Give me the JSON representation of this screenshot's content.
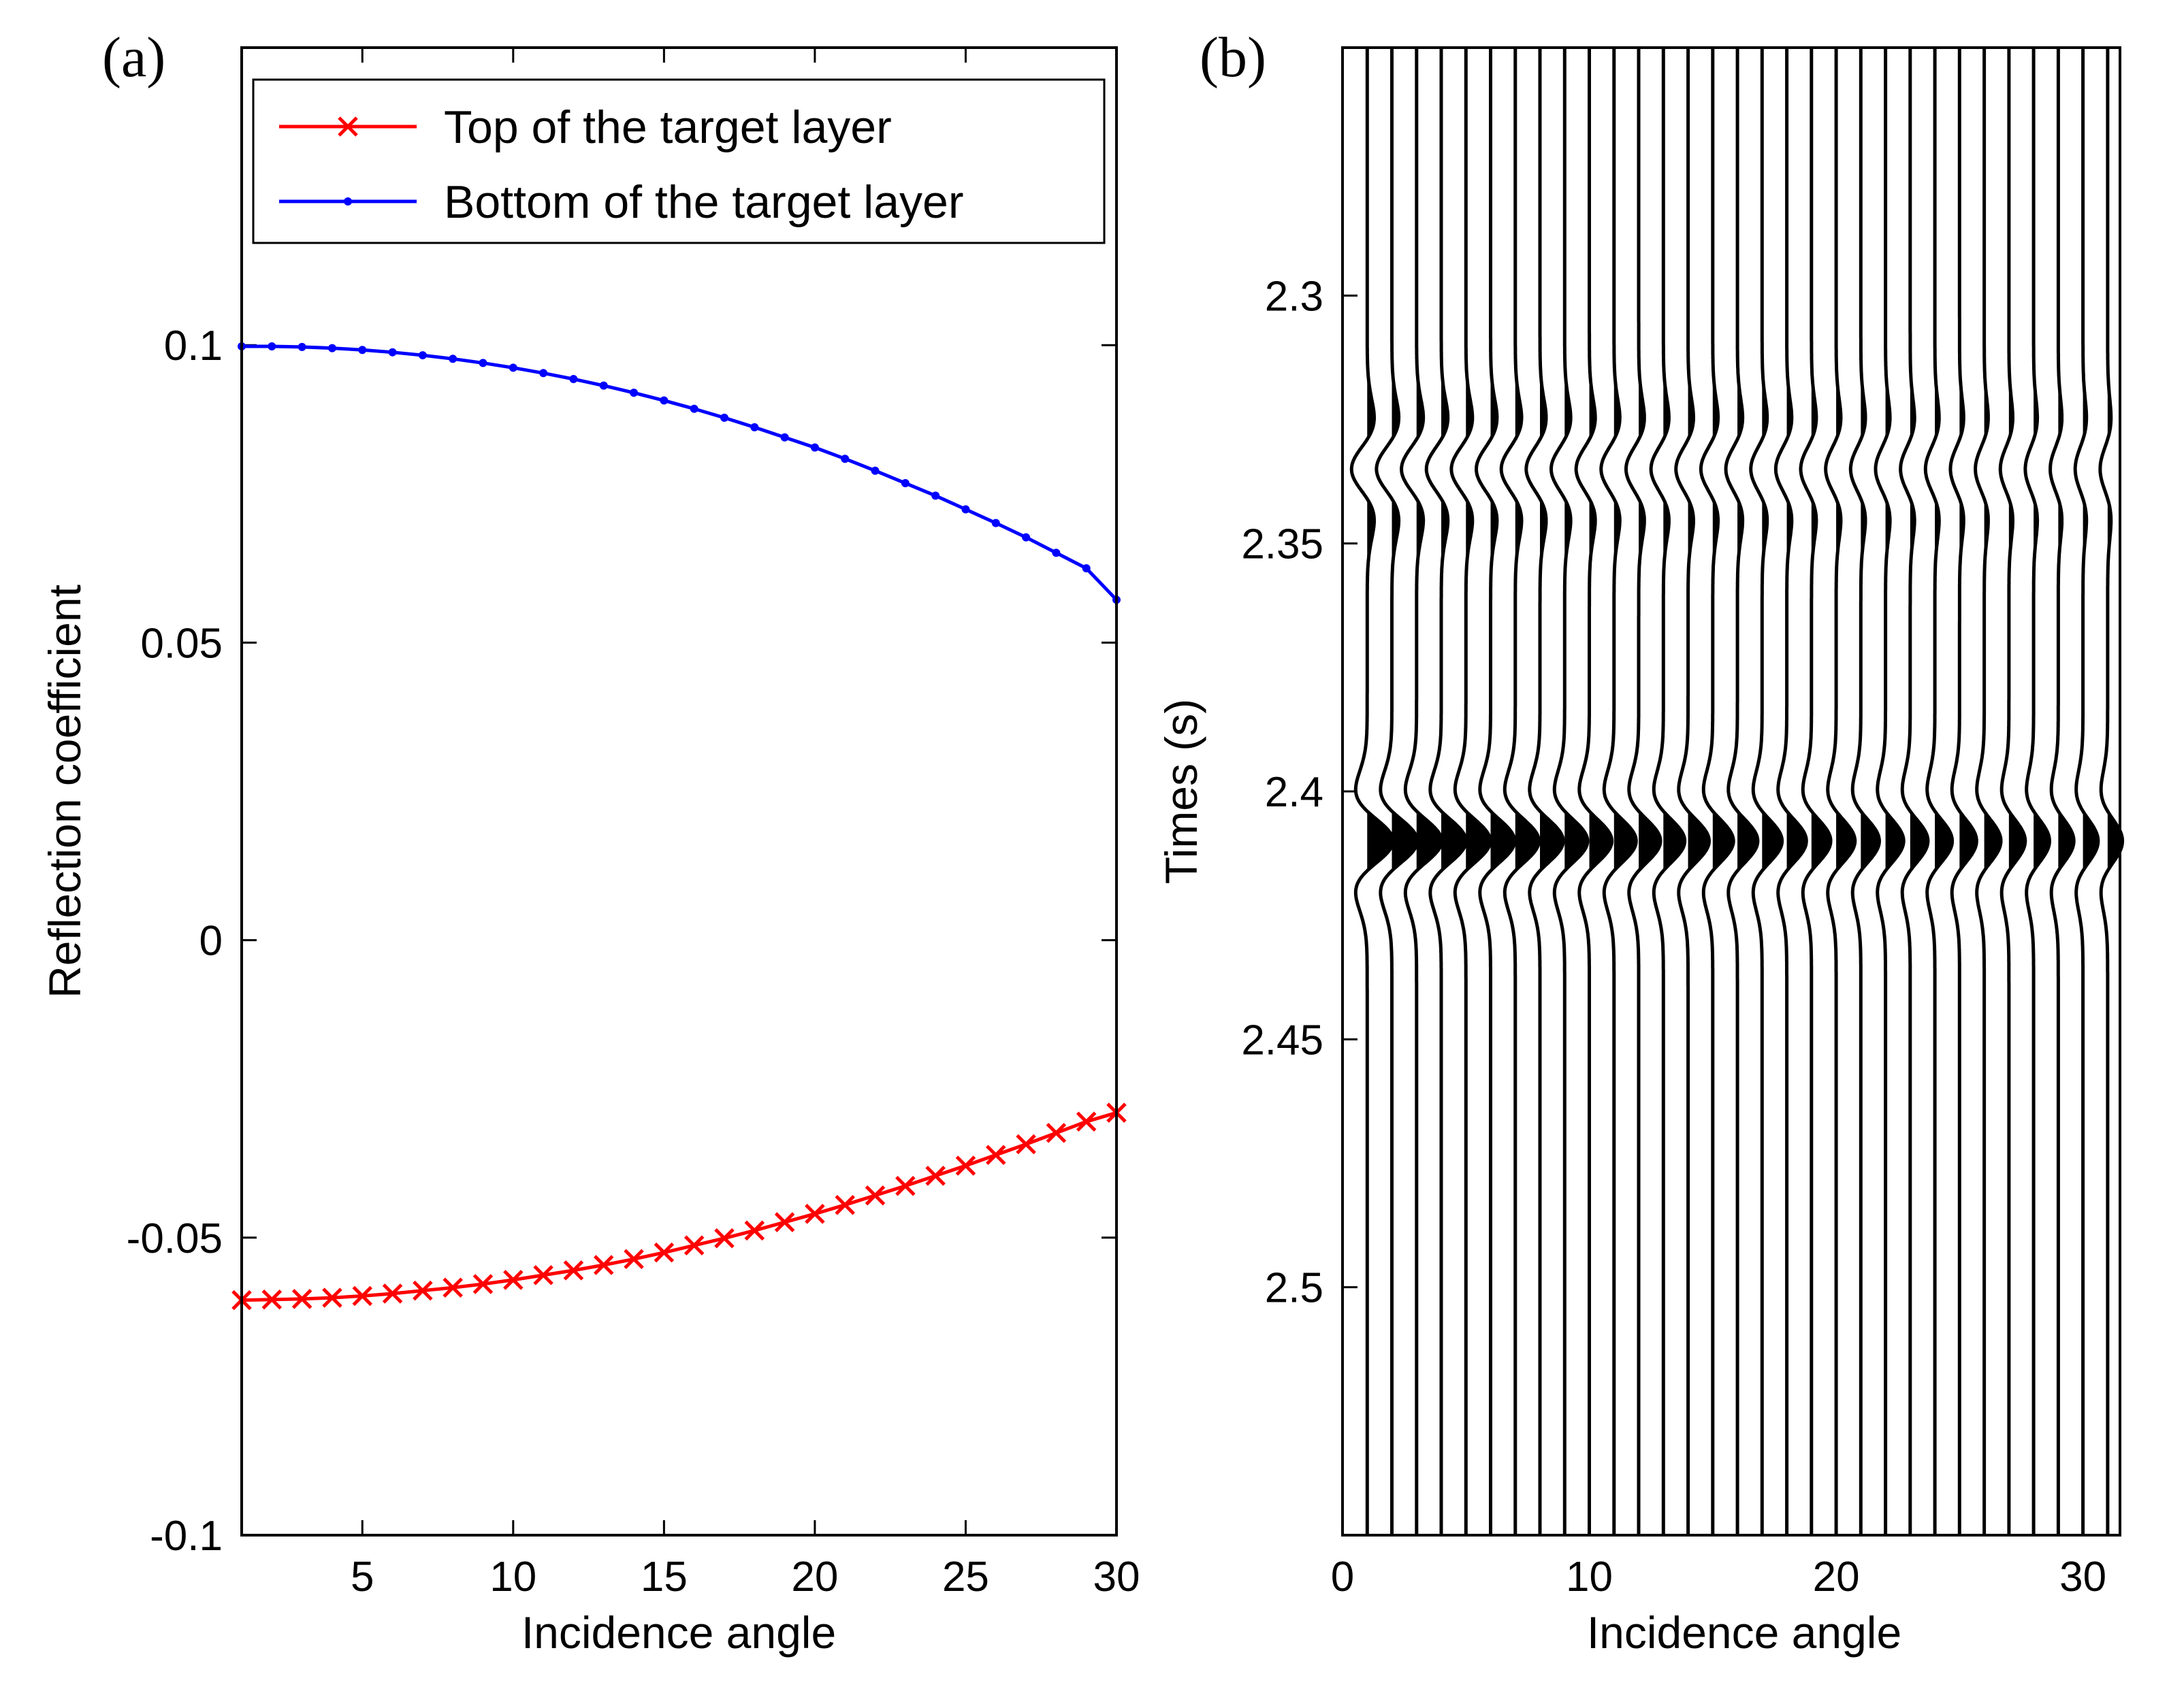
{
  "chart_data": [
    {
      "type": "line",
      "panel_label": "(a)",
      "title": "",
      "xlabel": "Incidence angle",
      "ylabel": "Reflection coefficient",
      "xlim": [
        1,
        30
      ],
      "ylim": [
        -0.1,
        0.15
      ],
      "xticks": [
        5,
        10,
        15,
        20,
        25,
        30
      ],
      "xtick_labels": [
        "5",
        "10",
        "15",
        "20",
        "25",
        "30"
      ],
      "yticks": [
        -0.1,
        -0.05,
        0,
        0.05,
        0.1
      ],
      "ytick_labels": [
        "-0.1",
        "-0.05",
        "0",
        "0.05",
        "0.1"
      ],
      "legend_position": "top-right",
      "x": [
        1,
        2,
        3,
        4,
        5,
        6,
        7,
        8,
        9,
        10,
        11,
        12,
        13,
        14,
        15,
        16,
        17,
        18,
        19,
        20,
        21,
        22,
        23,
        24,
        25,
        26,
        27,
        28,
        29,
        30
      ],
      "series": [
        {
          "name": "Top of the target layer",
          "color": "#ff0000",
          "marker": "x",
          "values": [
            -0.0605,
            -0.0604,
            -0.0603,
            -0.0601,
            -0.0598,
            -0.0594,
            -0.0589,
            -0.0584,
            -0.0578,
            -0.0571,
            -0.0563,
            -0.0555,
            -0.0546,
            -0.0536,
            -0.0525,
            -0.0513,
            -0.0501,
            -0.0488,
            -0.0474,
            -0.046,
            -0.0445,
            -0.0429,
            -0.0413,
            -0.0396,
            -0.0379,
            -0.0361,
            -0.0343,
            -0.0324,
            -0.0305,
            -0.029
          ]
        },
        {
          "name": "Bottom of the target layer",
          "color": "#0000ff",
          "marker": ".",
          "values": [
            0.0998,
            0.0998,
            0.0997,
            0.0995,
            0.0992,
            0.0988,
            0.0983,
            0.0977,
            0.097,
            0.0962,
            0.0953,
            0.0943,
            0.0932,
            0.092,
            0.0907,
            0.0893,
            0.0878,
            0.0862,
            0.0845,
            0.0828,
            0.0809,
            0.0789,
            0.0768,
            0.0747,
            0.0724,
            0.0701,
            0.0677,
            0.0651,
            0.0625,
            0.0572
          ]
        }
      ]
    },
    {
      "type": "line",
      "subtype": "seismic-wiggle",
      "panel_label": "(b)",
      "title": "",
      "xlabel": "Incidence angle",
      "ylabel": "Times (s)",
      "xlim": [
        0,
        31.5
      ],
      "ylim": [
        2.55,
        2.25
      ],
      "xticks": [
        0,
        10,
        20,
        30
      ],
      "xtick_labels": [
        "0",
        "10",
        "20",
        "30"
      ],
      "yticks": [
        2.3,
        2.35,
        2.4,
        2.45,
        2.5
      ],
      "ytick_labels": [
        "2.3",
        "2.35",
        "2.4",
        "2.45",
        "2.5"
      ],
      "trace_angles": [
        1,
        2,
        3,
        4,
        5,
        6,
        7,
        8,
        9,
        10,
        11,
        12,
        13,
        14,
        15,
        16,
        17,
        18,
        19,
        20,
        21,
        22,
        23,
        24,
        25,
        26,
        27,
        28,
        29,
        30,
        31
      ],
      "events": [
        {
          "name": "Top of the target layer",
          "time": 2.335,
          "amplitude_start": -0.0605,
          "amplitude_end": -0.029
        },
        {
          "name": "Bottom of the target layer",
          "time": 2.41,
          "amplitude_start": 0.0998,
          "amplitude_end": 0.0572
        }
      ],
      "trace_color": "#000000",
      "fill_positive": true
    }
  ]
}
